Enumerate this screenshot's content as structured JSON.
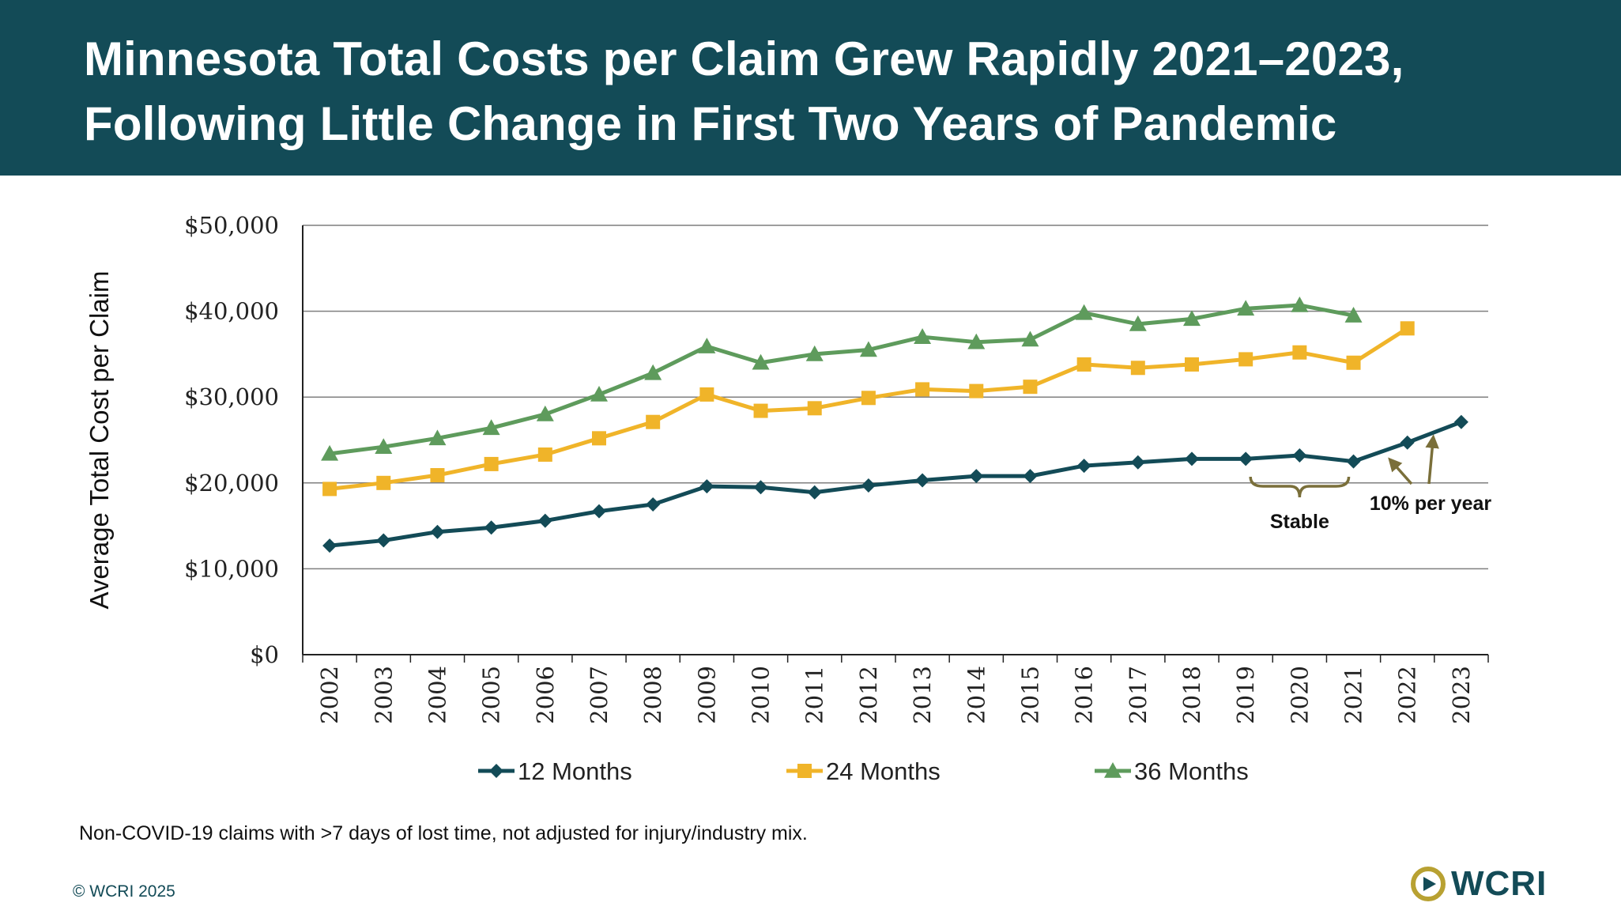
{
  "header": {
    "title_line1": "Minnesota Total Costs per Claim Grew Rapidly 2021–2023,",
    "title_line2": "Following Little Change in First Two Years of Pandemic"
  },
  "chart_data": {
    "type": "line",
    "ylabel": "Average Total Cost per Claim",
    "xlabel": "",
    "ylim": [
      0,
      50000
    ],
    "yticks": [
      0,
      10000,
      20000,
      30000,
      40000,
      50000
    ],
    "ytick_labels": [
      "$0",
      "$10,000",
      "$20,000",
      "$30,000",
      "$40,000",
      "$50,000"
    ],
    "grid": true,
    "legend_position": "bottom",
    "categories": [
      "2002",
      "2003",
      "2004",
      "2005",
      "2006",
      "2007",
      "2008",
      "2009",
      "2010",
      "2011",
      "2012",
      "2013",
      "2014",
      "2015",
      "2016",
      "2017",
      "2018",
      "2019",
      "2020",
      "2021",
      "2022",
      "2023"
    ],
    "series": [
      {
        "name": "12 Months",
        "color": "#134b57",
        "marker": "diamond",
        "values": [
          12700,
          13300,
          14300,
          14800,
          15600,
          16700,
          17500,
          19600,
          19500,
          18900,
          19700,
          20300,
          20800,
          20800,
          22000,
          22400,
          22800,
          22800,
          23200,
          22500,
          24700,
          27100
        ]
      },
      {
        "name": "24 Months",
        "color": "#f0b429",
        "marker": "square",
        "values": [
          19300,
          20000,
          20900,
          22200,
          23300,
          25200,
          27100,
          30300,
          28400,
          28700,
          29900,
          30900,
          30700,
          31200,
          33800,
          33400,
          33800,
          34400,
          35200,
          34000,
          38000,
          null
        ]
      },
      {
        "name": "36 Months",
        "color": "#5e9b5c",
        "marker": "triangle",
        "values": [
          23400,
          24200,
          25200,
          26400,
          28000,
          30300,
          32800,
          35900,
          34000,
          35000,
          35500,
          37000,
          36400,
          36700,
          39800,
          38500,
          39100,
          40300,
          40700,
          39500,
          null,
          null
        ]
      }
    ],
    "annotations": [
      {
        "text": "Stable",
        "from": "2019",
        "to": "2021"
      },
      {
        "text": "10% per year",
        "from": "2022",
        "to": "2023"
      }
    ]
  },
  "footnote": "Non-COVID-19 claims with >7 days of lost time, not adjusted for injury/industry mix.",
  "copyright": "© WCRI 2025",
  "logo": {
    "text": "WCRI"
  },
  "colors": {
    "header_bg": "#134b57",
    "accent_olive": "#7a6f3a",
    "logo_gold": "#b8a132"
  }
}
